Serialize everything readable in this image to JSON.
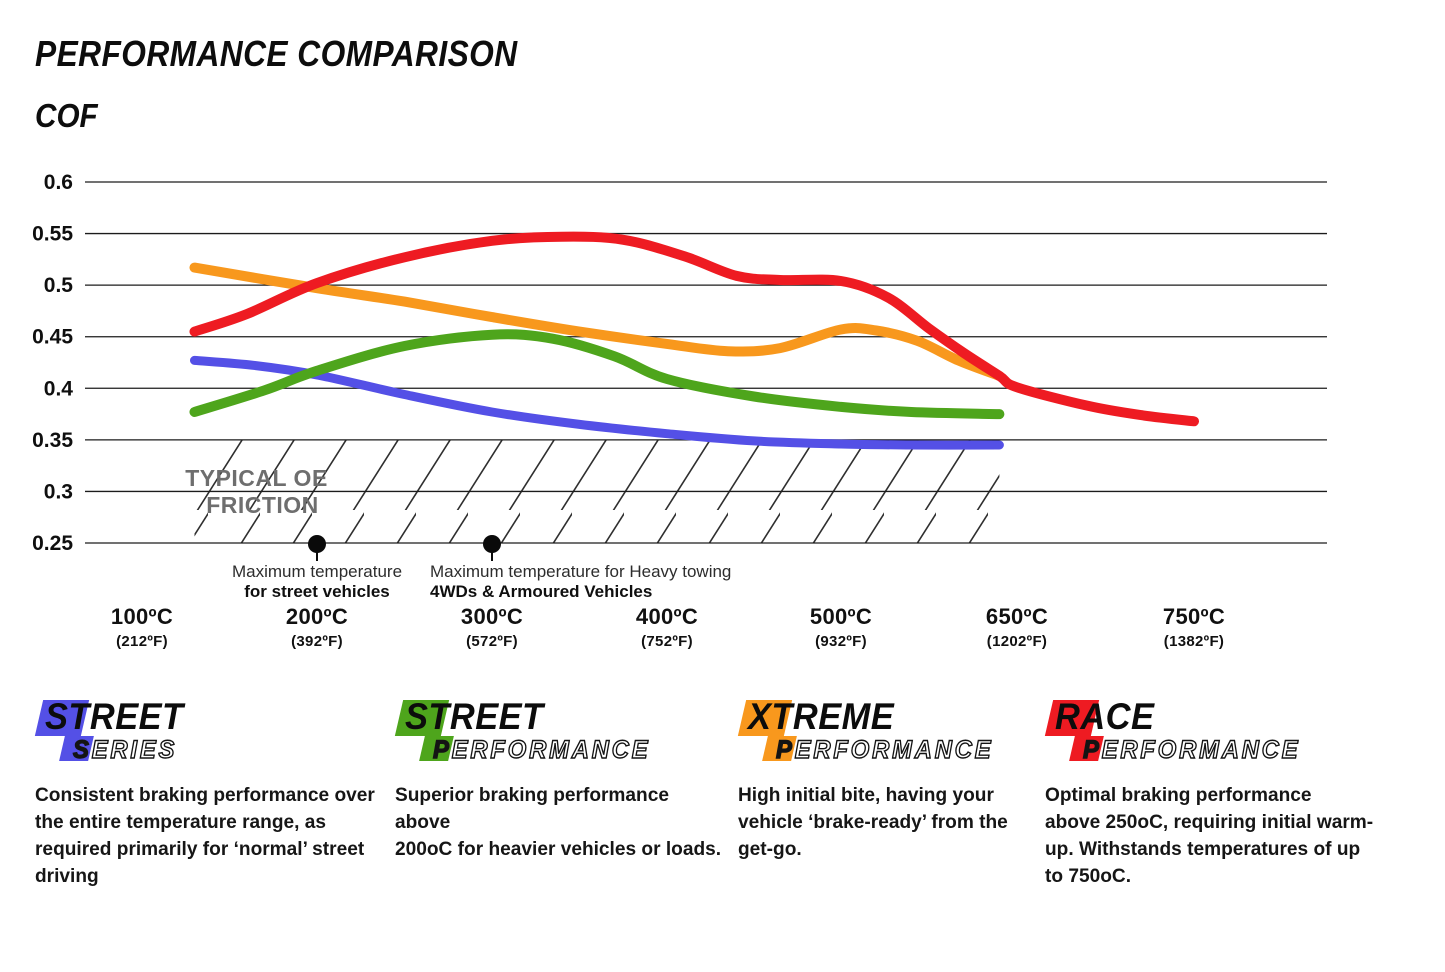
{
  "chart_data": {
    "type": "line",
    "title": "PERFORMANCE COMPARISON",
    "ylabel": "COF",
    "ylim": [
      0.25,
      0.6
    ],
    "grid": "horizontal gridlines at every 0.05 COF step",
    "legend_position": "branded blocks below chart",
    "y_ticks": [
      "0.6",
      "0.55",
      "0.5",
      "0.45",
      "0.4",
      "0.35",
      "0.3",
      "0.25"
    ],
    "x_ticks": [
      {
        "temp": 100,
        "celsius": "100ºC",
        "fahrenheit": "(212ºF)"
      },
      {
        "temp": 200,
        "celsius": "200ºC",
        "fahrenheit": "(392ºF)"
      },
      {
        "temp": 300,
        "celsius": "300ºC",
        "fahrenheit": "(572ºF)"
      },
      {
        "temp": 400,
        "celsius": "400ºC",
        "fahrenheit": "(752ºF)"
      },
      {
        "temp": 500,
        "celsius": "500ºC",
        "fahrenheit": "(932ºF)"
      },
      {
        "temp": 650,
        "celsius": "650ºC",
        "fahrenheit": "(1202ºF)"
      },
      {
        "temp": 750,
        "celsius": "750ºC",
        "fahrenheit": "(1382ºF)"
      }
    ],
    "series": [
      {
        "name": "Street Series",
        "color": "#5450e6",
        "stroke_width": 9,
        "points": [
          [
            130,
            0.427
          ],
          [
            165,
            0.422
          ],
          [
            200,
            0.413
          ],
          [
            250,
            0.394
          ],
          [
            300,
            0.377
          ],
          [
            350,
            0.365
          ],
          [
            400,
            0.356
          ],
          [
            450,
            0.349
          ],
          [
            500,
            0.346
          ],
          [
            560,
            0.345
          ],
          [
            635,
            0.345
          ]
        ]
      },
      {
        "name": "Street Performance",
        "color": "#4ea51c",
        "stroke_width": 10,
        "points": [
          [
            130,
            0.377
          ],
          [
            170,
            0.398
          ],
          [
            200,
            0.417
          ],
          [
            250,
            0.441
          ],
          [
            300,
            0.452
          ],
          [
            335,
            0.448
          ],
          [
            370,
            0.431
          ],
          [
            400,
            0.409
          ],
          [
            450,
            0.392
          ],
          [
            500,
            0.382
          ],
          [
            560,
            0.377
          ],
          [
            635,
            0.375
          ]
        ]
      },
      {
        "name": "Xtreme Performance",
        "color": "#f8981d",
        "stroke_width": 10,
        "points": [
          [
            130,
            0.517
          ],
          [
            200,
            0.497
          ],
          [
            250,
            0.484
          ],
          [
            300,
            0.469
          ],
          [
            350,
            0.455
          ],
          [
            400,
            0.443
          ],
          [
            435,
            0.436
          ],
          [
            465,
            0.439
          ],
          [
            500,
            0.457
          ],
          [
            530,
            0.456
          ],
          [
            565,
            0.446
          ],
          [
            600,
            0.427
          ],
          [
            635,
            0.412
          ]
        ]
      },
      {
        "name": "Race Performance",
        "color": "#ee1b22",
        "stroke_width": 10,
        "points": [
          [
            130,
            0.455
          ],
          [
            160,
            0.472
          ],
          [
            200,
            0.502
          ],
          [
            250,
            0.527
          ],
          [
            300,
            0.543
          ],
          [
            340,
            0.547
          ],
          [
            375,
            0.544
          ],
          [
            410,
            0.528
          ],
          [
            440,
            0.509
          ],
          [
            465,
            0.505
          ],
          [
            500,
            0.504
          ],
          [
            540,
            0.488
          ],
          [
            575,
            0.458
          ],
          [
            605,
            0.434
          ],
          [
            635,
            0.412
          ],
          [
            650,
            0.401
          ],
          [
            690,
            0.383
          ],
          [
            720,
            0.374
          ],
          [
            750,
            0.368
          ]
        ]
      }
    ],
    "oe_band": {
      "label_line1": "TYPICAL OE",
      "label_line2": "FRICTION",
      "cof_top": 0.35,
      "cof_bottom": 0.25,
      "temp_start": 130,
      "temp_end": 635
    },
    "markers": [
      {
        "temp": 200,
        "line1": "Maximum temperature",
        "line2": "for street vehicles",
        "align": "center"
      },
      {
        "temp": 300,
        "line1": "Maximum temperature for Heavy towing",
        "line2": "4WDs & Armoured Vehicles",
        "align": "left"
      }
    ]
  },
  "legend_blocks": [
    {
      "main": "STREET",
      "sub_initial": "S",
      "sub_rest": "ERIES",
      "color": "#5450e6",
      "description": [
        "Consistent braking performance over",
        "the entire temperature range, as",
        "required primarily for ‘normal’ street",
        "driving"
      ]
    },
    {
      "main": "STREET",
      "sub_initial": "P",
      "sub_rest": "ERFORMANCE",
      "color": "#4ea51c",
      "description": [
        "Superior braking performance above",
        "200oC for heavier vehicles or loads."
      ]
    },
    {
      "main": "XTREME",
      "sub_initial": "P",
      "sub_rest": "ERFORMANCE",
      "color": "#f8981d",
      "description": [
        "High initial bite, having your",
        "vehicle ‘brake-ready’ from the",
        "get-go."
      ]
    },
    {
      "main": "RACE",
      "sub_initial": "P",
      "sub_rest": "ERFORMANCE",
      "color": "#ee1b22",
      "description": [
        "Optimal braking performance",
        "above 250oC, requiring initial warm-",
        "up. Withstands temperatures of up",
        "to 750oC."
      ]
    }
  ]
}
